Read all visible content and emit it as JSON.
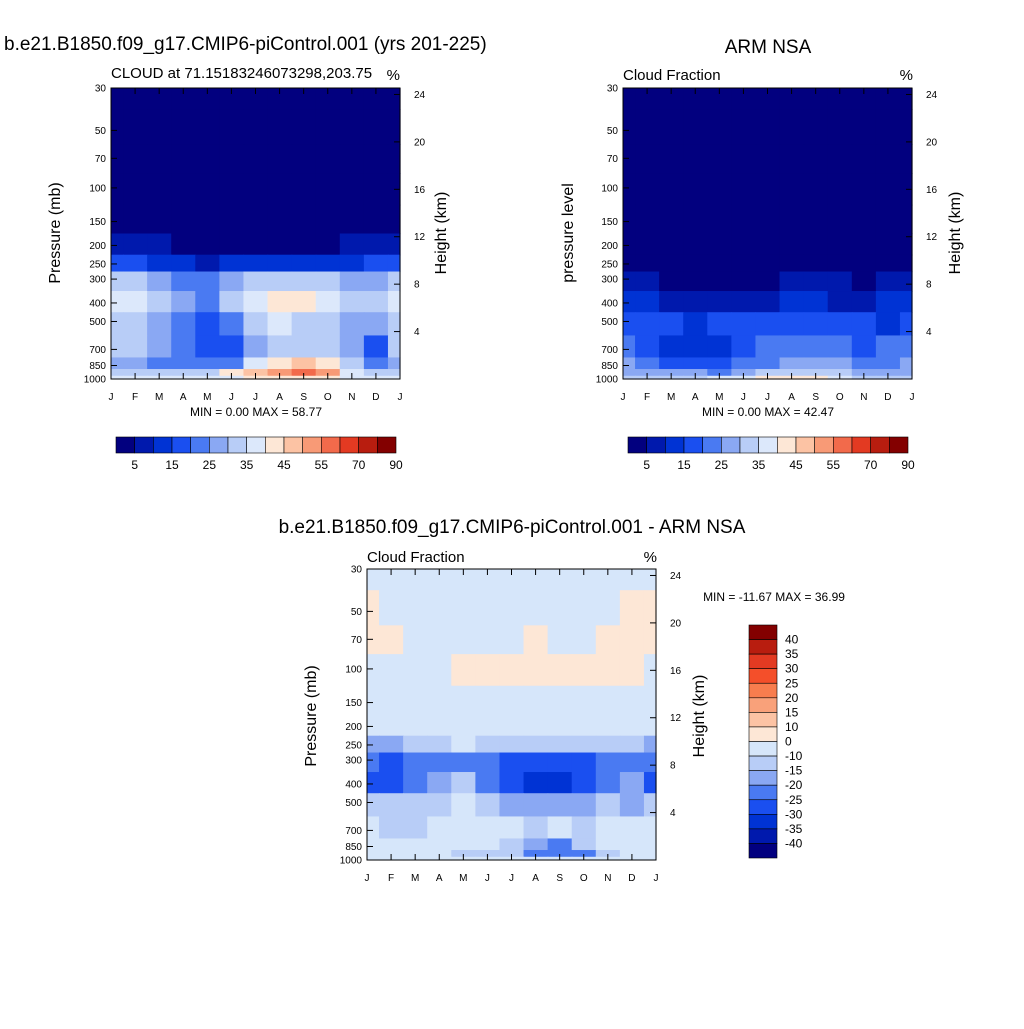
{
  "panels": {
    "model": {
      "title": "b.e21.B1850.f09_g17.CMIP6-piControl.001 (yrs 201-225)",
      "left_label": "CLOUD at 71.15183246073298,203.75",
      "right_label": "%",
      "ylabel_left": "Pressure (mb)",
      "ylabel_right": "Height (km)",
      "minmax": "MIN =   0.00 MAX =  58.77"
    },
    "obs": {
      "title": "ARM NSA",
      "left_label": "Cloud Fraction",
      "right_label": "%",
      "ylabel_left": "pressure level",
      "ylabel_right": "Height (km)",
      "minmax": "MIN =   0.00 MAX =  42.47"
    },
    "diff": {
      "title": "b.e21.B1850.f09_g17.CMIP6-piControl.001 - ARM NSA",
      "left_label": "Cloud Fraction",
      "right_label": "%",
      "ylabel_left": "Pressure (mb)",
      "ylabel_right": "Height (km)",
      "minmax": "MIN = -11.67 MAX =  36.99"
    }
  },
  "colorbars": {
    "horizontal_labels": [
      "5",
      "15",
      "25",
      "35",
      "45",
      "55",
      "70",
      "90"
    ],
    "vertical_labels": [
      "40",
      "35",
      "30",
      "25",
      "20",
      "15",
      "10",
      "0",
      "-10",
      "-15",
      "-20",
      "-25",
      "-30",
      "-35",
      "-40"
    ]
  },
  "palettes": {
    "absolute": [
      "#02007f",
      "#0019ad",
      "#0033d4",
      "#1a4ff0",
      "#4a7af2",
      "#8aa8f3",
      "#b8cdf7",
      "#dce8fb",
      "#fde7d6",
      "#fcc3a4",
      "#f89a76",
      "#f26a4b",
      "#e33a22",
      "#b81d0f",
      "#830000"
    ],
    "difference": [
      "#830000",
      "#b81d0f",
      "#e33a22",
      "#f44f2a",
      "#f87d4e",
      "#f9a17a",
      "#fcc3a4",
      "#fde7d6",
      "#d6e6fa",
      "#b8cdf7",
      "#8aa8f3",
      "#4a7af2",
      "#1a4ff0",
      "#0033d4",
      "#0019ad",
      "#02007f"
    ]
  },
  "chart_data": [
    {
      "type": "heatmap",
      "title": "b.e21.B1850.f09_g17.CMIP6-piControl.001 (yrs 201-225)",
      "variable": "CLOUD",
      "units": "%",
      "x_ticks": [
        "J",
        "F",
        "M",
        "A",
        "M",
        "J",
        "J",
        "A",
        "S",
        "O",
        "N",
        "D",
        "J"
      ],
      "y_pressure_ticks": [
        30,
        50,
        70,
        100,
        150,
        200,
        250,
        300,
        400,
        500,
        700,
        850,
        1000
      ],
      "y_height_ticks_km": [
        4,
        8,
        12,
        16,
        20,
        24
      ],
      "ylabel": "Pressure (mb)",
      "y2label": "Height (km)",
      "levels": [
        5,
        10,
        15,
        20,
        25,
        30,
        35,
        40,
        45,
        50,
        55,
        60,
        70,
        80,
        90
      ],
      "pressure_levels": [
        30,
        50,
        70,
        100,
        150,
        200,
        250,
        300,
        400,
        500,
        700,
        850,
        925,
        1000
      ],
      "values": [
        [
          0,
          0,
          0,
          0,
          0,
          0,
          0,
          0,
          0,
          0,
          0,
          0,
          0
        ],
        [
          0,
          0,
          0,
          0,
          0,
          0,
          0,
          0,
          0,
          0,
          0,
          0,
          0
        ],
        [
          0,
          0,
          0,
          0,
          0,
          0,
          0,
          0,
          0,
          0,
          0,
          0,
          0
        ],
        [
          1,
          1,
          1,
          1,
          1,
          1,
          1,
          1,
          1,
          1,
          1,
          1,
          1
        ],
        [
          2,
          2,
          2,
          2,
          2,
          2,
          2,
          2,
          2,
          2,
          2,
          2,
          2
        ],
        [
          7,
          7,
          6,
          4,
          3,
          3,
          4,
          4,
          4,
          4,
          5,
          6,
          7
        ],
        [
          18,
          17,
          14,
          10,
          9,
          10,
          12,
          13,
          13,
          12,
          13,
          15,
          18
        ],
        [
          30,
          30,
          28,
          24,
          23,
          26,
          32,
          33,
          33,
          30,
          27,
          28,
          30
        ],
        [
          38,
          36,
          30,
          26,
          22,
          30,
          36,
          40,
          42,
          36,
          30,
          30,
          38
        ],
        [
          30,
          32,
          28,
          22,
          18,
          24,
          34,
          36,
          34,
          34,
          28,
          29,
          30
        ],
        [
          30,
          30,
          26,
          20,
          16,
          18,
          26,
          32,
          30,
          30,
          26,
          18,
          30
        ],
        [
          28,
          28,
          24,
          22,
          20,
          24,
          36,
          44,
          48,
          40,
          30,
          24,
          28
        ],
        [
          32,
          32,
          32,
          30,
          34,
          40,
          46,
          54,
          58,
          50,
          36,
          32,
          32
        ],
        [
          36,
          36,
          36,
          36,
          36,
          38,
          40,
          42,
          44,
          40,
          38,
          36,
          36
        ]
      ],
      "min": 0.0,
      "max": 58.77
    },
    {
      "type": "heatmap",
      "title": "ARM NSA",
      "variable": "Cloud Fraction",
      "units": "%",
      "x_ticks": [
        "J",
        "F",
        "M",
        "A",
        "M",
        "J",
        "J",
        "A",
        "S",
        "O",
        "N",
        "D",
        "J"
      ],
      "y_pressure_ticks": [
        30,
        50,
        70,
        100,
        150,
        200,
        250,
        300,
        400,
        500,
        700,
        850,
        1000
      ],
      "y_height_ticks_km": [
        4,
        8,
        12,
        16,
        20,
        24
      ],
      "ylabel": "pressure level",
      "y2label": "Height (km)",
      "levels": [
        5,
        10,
        15,
        20,
        25,
        30,
        35,
        40,
        45,
        50,
        55,
        60,
        70,
        80,
        90
      ],
      "pressure_levels": [
        30,
        50,
        70,
        100,
        150,
        200,
        250,
        300,
        400,
        500,
        700,
        850,
        925,
        1000
      ],
      "values": [
        [
          0,
          0,
          0,
          0,
          0,
          0,
          0,
          0,
          0,
          0,
          0,
          0,
          0
        ],
        [
          0,
          0,
          0,
          0,
          0,
          0,
          0,
          0,
          0,
          0,
          0,
          0,
          0
        ],
        [
          0,
          0,
          0,
          0,
          0,
          0,
          0,
          0,
          0,
          0,
          0,
          0,
          0
        ],
        [
          0,
          0,
          0,
          0,
          0,
          0,
          0,
          0,
          0,
          0,
          0,
          0,
          0
        ],
        [
          0,
          0,
          0,
          0,
          0,
          0,
          0,
          0,
          0,
          0,
          0,
          0,
          0
        ],
        [
          1,
          1,
          0,
          0,
          0,
          0,
          0,
          0,
          0,
          0,
          0,
          1,
          1
        ],
        [
          3,
          2,
          2,
          1,
          1,
          1,
          1,
          1,
          1,
          1,
          1,
          2,
          3
        ],
        [
          6,
          5,
          4,
          3,
          3,
          3,
          4,
          5,
          5,
          5,
          4,
          5,
          6
        ],
        [
          13,
          12,
          9,
          9,
          9,
          8,
          9,
          11,
          11,
          9,
          9,
          11,
          13
        ],
        [
          16,
          18,
          16,
          14,
          15,
          16,
          16,
          17,
          17,
          16,
          16,
          14,
          16
        ],
        [
          22,
          18,
          14,
          12,
          14,
          16,
          20,
          22,
          22,
          20,
          18,
          20,
          22
        ],
        [
          26,
          24,
          18,
          16,
          16,
          20,
          24,
          26,
          28,
          26,
          22,
          22,
          26
        ],
        [
          28,
          28,
          28,
          26,
          24,
          28,
          32,
          34,
          34,
          30,
          26,
          26,
          28
        ],
        [
          30,
          30,
          30,
          34,
          36,
          38,
          40,
          42,
          40,
          36,
          32,
          30,
          30
        ]
      ],
      "min": 0.0,
      "max": 42.47
    },
    {
      "type": "heatmap",
      "title": "b.e21.B1850.f09_g17.CMIP6-piControl.001 - ARM NSA",
      "variable": "Cloud Fraction",
      "units": "%",
      "x_ticks": [
        "J",
        "F",
        "M",
        "A",
        "M",
        "J",
        "J",
        "A",
        "S",
        "O",
        "N",
        "D",
        "J"
      ],
      "y_pressure_ticks": [
        30,
        50,
        70,
        100,
        150,
        200,
        250,
        300,
        400,
        500,
        700,
        850,
        1000
      ],
      "y_height_ticks_km": [
        4,
        8,
        12,
        16,
        20,
        24
      ],
      "ylabel": "Pressure (mb)",
      "y2label": "Height (km)",
      "levels": [
        -40,
        -35,
        -30,
        -25,
        -20,
        -15,
        -10,
        0,
        10,
        15,
        20,
        25,
        30,
        35,
        40
      ],
      "pressure_levels": [
        30,
        50,
        70,
        100,
        150,
        200,
        250,
        300,
        400,
        500,
        700,
        850,
        925,
        1000
      ],
      "values": [
        [
          1,
          1,
          1,
          1,
          1,
          1,
          1,
          1,
          1,
          1,
          1,
          1,
          1
        ],
        [
          -1,
          1,
          1,
          1,
          1,
          1,
          1,
          1,
          1,
          1,
          1,
          -1,
          -1
        ],
        [
          -1,
          -1,
          1,
          1,
          1,
          1,
          1,
          -1,
          1,
          1,
          -1,
          -1,
          -1
        ],
        [
          1,
          1,
          1,
          1,
          -1,
          -1,
          -1,
          -1,
          -1,
          -1,
          -1,
          -1,
          1
        ],
        [
          2,
          2,
          2,
          2,
          2,
          2,
          2,
          2,
          2,
          2,
          2,
          2,
          2
        ],
        [
          6,
          6,
          5,
          4,
          3,
          3,
          4,
          4,
          4,
          4,
          5,
          5,
          6
        ],
        [
          15,
          15,
          12,
          10,
          9,
          10,
          12,
          13,
          13,
          12,
          12,
          13,
          15
        ],
        [
          24,
          25,
          24,
          21,
          20,
          23,
          28,
          29,
          29,
          26,
          23,
          23,
          24
        ],
        [
          26,
          27,
          24,
          18,
          14,
          22,
          27,
          30,
          33,
          28,
          22,
          19,
          26
        ],
        [
          14,
          14,
          12,
          10,
          8,
          10,
          18,
          19,
          17,
          18,
          12,
          15,
          14
        ],
        [
          8,
          12,
          12,
          8,
          4,
          2,
          6,
          10,
          8,
          10,
          8,
          0,
          8
        ],
        [
          2,
          4,
          6,
          6,
          4,
          4,
          12,
          18,
          20,
          14,
          8,
          2,
          2
        ],
        [
          4,
          4,
          4,
          4,
          10,
          12,
          14,
          20,
          24,
          20,
          10,
          6,
          4
        ],
        [
          6,
          6,
          6,
          2,
          0,
          0,
          0,
          0,
          4,
          4,
          6,
          6,
          6
        ]
      ],
      "min": -11.67,
      "max": 36.99
    }
  ]
}
